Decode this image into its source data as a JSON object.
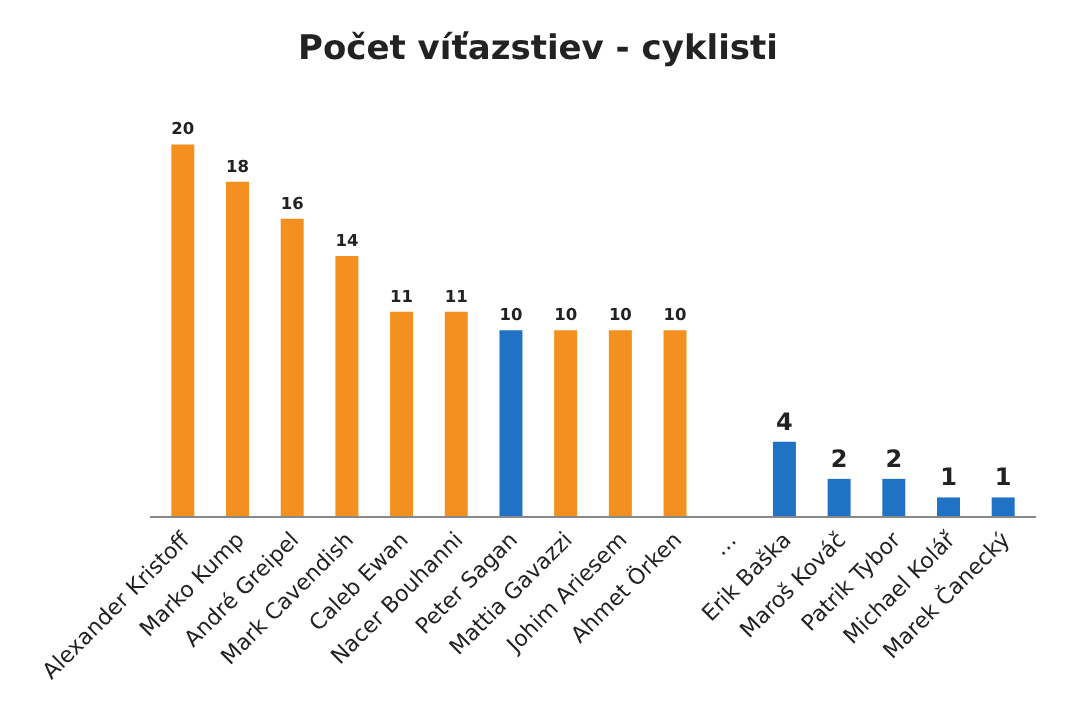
{
  "chart_data": {
    "type": "bar",
    "title": "Počet víťazstiev - cyklisti",
    "categories": [
      "Alexander Kristoff",
      "Marko Kump",
      "André Greipel",
      "Mark Cavendish",
      "Caleb Ewan",
      "Nacer Bouhanni",
      "Peter Sagan",
      "Mattia Gavazzi",
      "Johim Ariesem",
      "Ahmet Örken",
      "…",
      "Erik Baška",
      "Maroš Kováč",
      "Patrik Tybor",
      "Michael Kolář",
      "Marek Čanecký"
    ],
    "values": [
      20,
      18,
      16,
      14,
      11,
      11,
      10,
      10,
      10,
      10,
      null,
      4,
      2,
      2,
      1,
      1
    ],
    "colors": [
      "#f39020",
      "#f39020",
      "#f39020",
      "#f39020",
      "#f39020",
      "#f39020",
      "#1f72c4",
      "#f39020",
      "#f39020",
      "#f39020",
      "#f39020",
      "#1f72c4",
      "#1f72c4",
      "#1f72c4",
      "#1f72c4",
      "#1f72c4"
    ],
    "data_labels": true,
    "legend": false,
    "tick_labels": "x"
  }
}
